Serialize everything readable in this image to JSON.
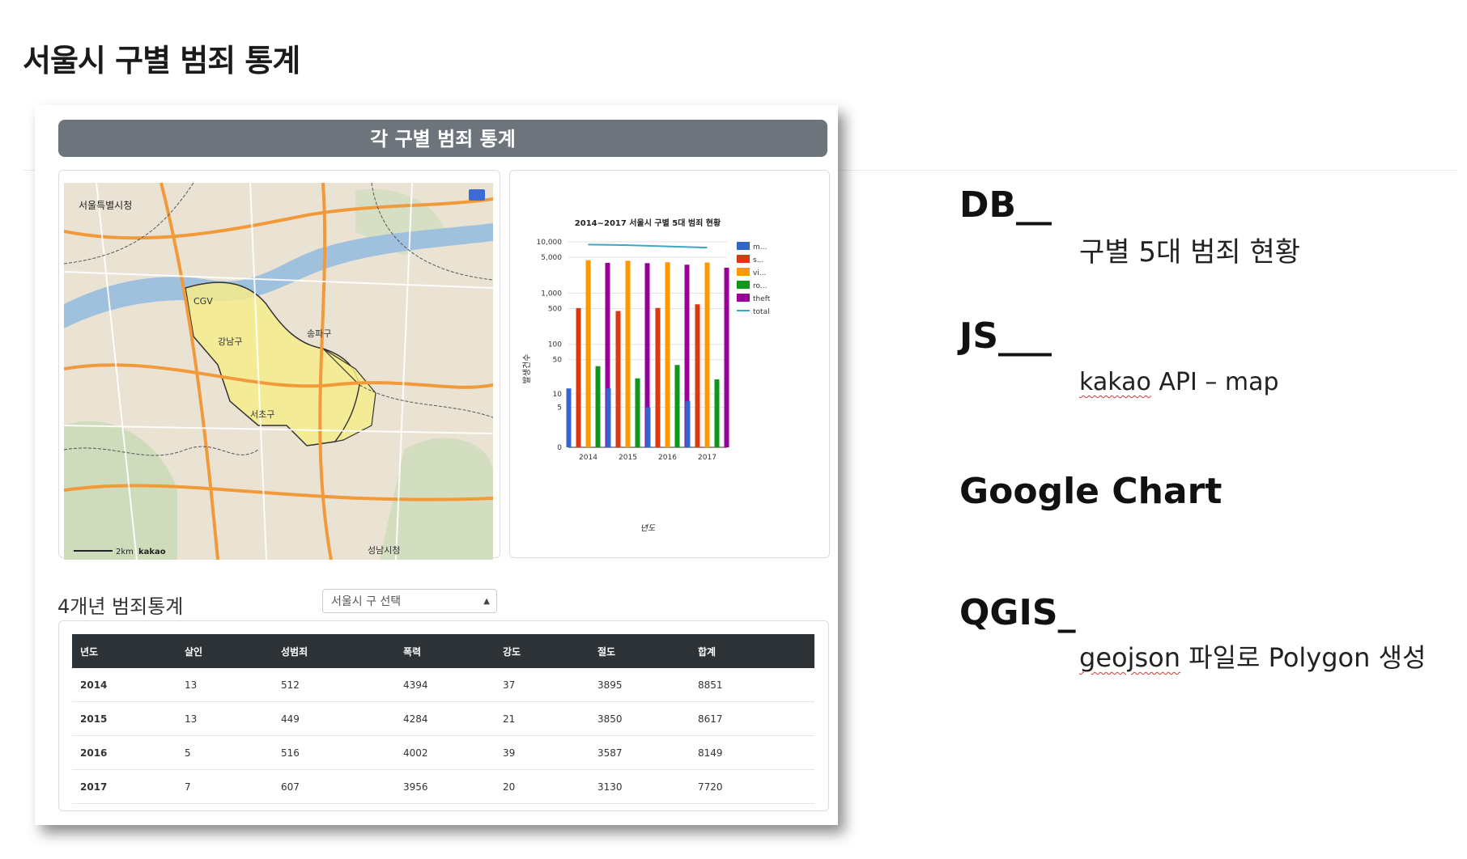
{
  "page": {
    "heading": "서울시 구별 범죄 통계"
  },
  "panel": {
    "header": "각 구별 범죄 통계",
    "map": {
      "labels": [
        "서울특별시청",
        "2km",
        "kakao",
        "CGV",
        "강남구",
        "서초구",
        "송파구",
        "성남시청"
      ]
    },
    "stats_title": "4개년 범죄통계",
    "select": {
      "value": "서울시 구 선택"
    },
    "table": {
      "headers": [
        "년도",
        "살인",
        "성범죄",
        "폭력",
        "강도",
        "절도",
        "합계"
      ],
      "rows": [
        [
          "2014",
          "13",
          "512",
          "4394",
          "37",
          "3895",
          "8851"
        ],
        [
          "2015",
          "13",
          "449",
          "4284",
          "21",
          "3850",
          "8617"
        ],
        [
          "2016",
          "5",
          "516",
          "4002",
          "39",
          "3587",
          "8149"
        ],
        [
          "2017",
          "7",
          "607",
          "3956",
          "20",
          "3130",
          "7720"
        ]
      ]
    }
  },
  "chart_data": {
    "type": "bar",
    "title": "2014~2017 서울시 구별 5대 범죄 현황",
    "xlabel": "년도",
    "ylabel": "발생건수",
    "scale": "log",
    "ylim": [
      0,
      10000
    ],
    "y_ticks": [
      "10,000",
      "5,000",
      "1,000",
      "500",
      "100",
      "50",
      "10",
      "5",
      "0"
    ],
    "categories": [
      "2014",
      "2015",
      "2016",
      "2017"
    ],
    "series": [
      {
        "name": "m...",
        "color": "#3366cc",
        "values": [
          13,
          13,
          5,
          7
        ]
      },
      {
        "name": "s...",
        "color": "#dc3912",
        "values": [
          512,
          449,
          516,
          607
        ]
      },
      {
        "name": "vi...",
        "color": "#ff9900",
        "values": [
          4394,
          4284,
          4002,
          3956
        ]
      },
      {
        "name": "ro...",
        "color": "#109618",
        "values": [
          37,
          21,
          39,
          20
        ]
      },
      {
        "name": "theft",
        "color": "#990099",
        "values": [
          3895,
          3850,
          3587,
          3130
        ]
      },
      {
        "name": "total",
        "color": "#3ba8c4",
        "type": "line",
        "values": [
          8851,
          8617,
          8149,
          7720
        ]
      }
    ],
    "legend_position": "right"
  },
  "notes": [
    {
      "head": "DB__",
      "sub": "구별 5대 범죄 현황"
    },
    {
      "head": "JS___",
      "sub_a": "kakao",
      "sub_b": " API – map"
    },
    {
      "head": "Google Chart"
    },
    {
      "head": "QGIS_",
      "sub_a": "geojson",
      "sub_b": " 파일로 Polygon 생성"
    }
  ]
}
